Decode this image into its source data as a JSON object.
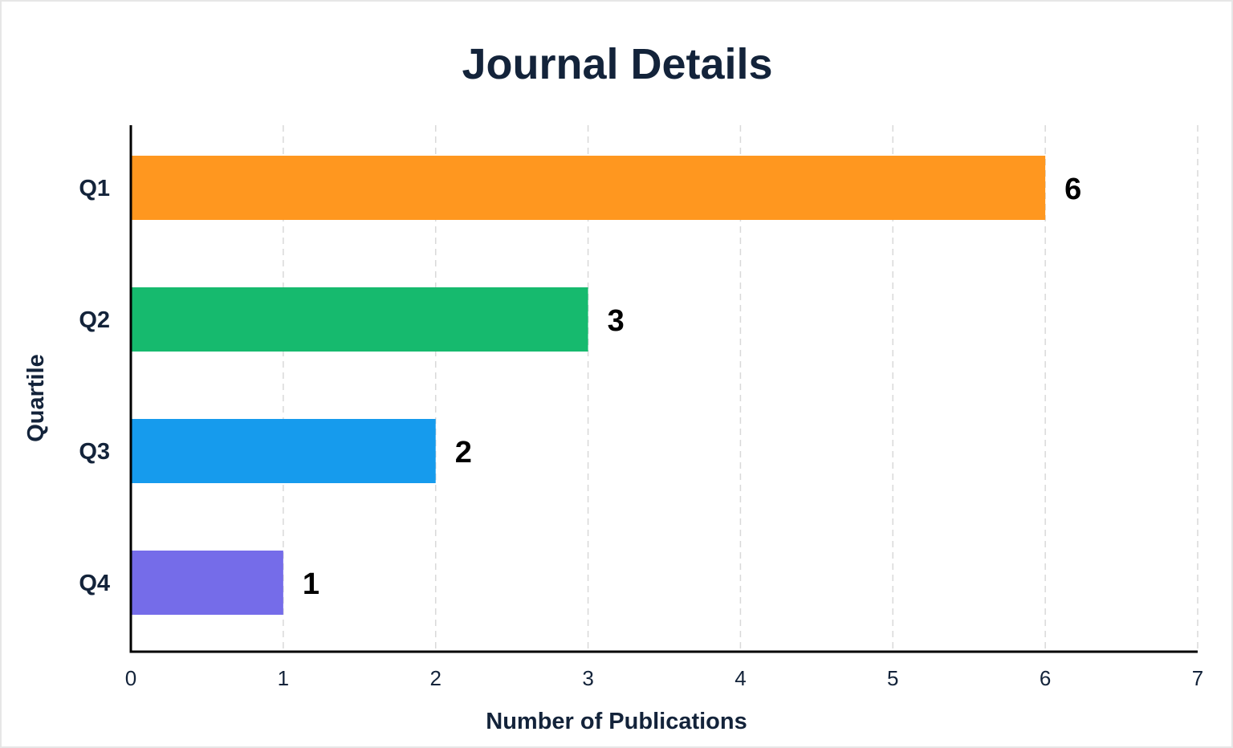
{
  "chart_data": {
    "type": "bar",
    "orientation": "horizontal",
    "title": "Journal Details",
    "xlabel": "Number of Publications",
    "ylabel": "Quartile",
    "categories": [
      "Q1",
      "Q2",
      "Q3",
      "Q4"
    ],
    "values": [
      6,
      3,
      2,
      1
    ],
    "value_labels": [
      "6",
      "3",
      "2",
      "1"
    ],
    "bar_colors": [
      "#FF971F",
      "#16BA6E",
      "#169BED",
      "#756CE9"
    ],
    "xlim": [
      0,
      7
    ],
    "xticks": [
      "0",
      "1",
      "2",
      "3",
      "4",
      "5",
      "6",
      "7"
    ],
    "grid": "x-dashed",
    "legend": "none"
  }
}
